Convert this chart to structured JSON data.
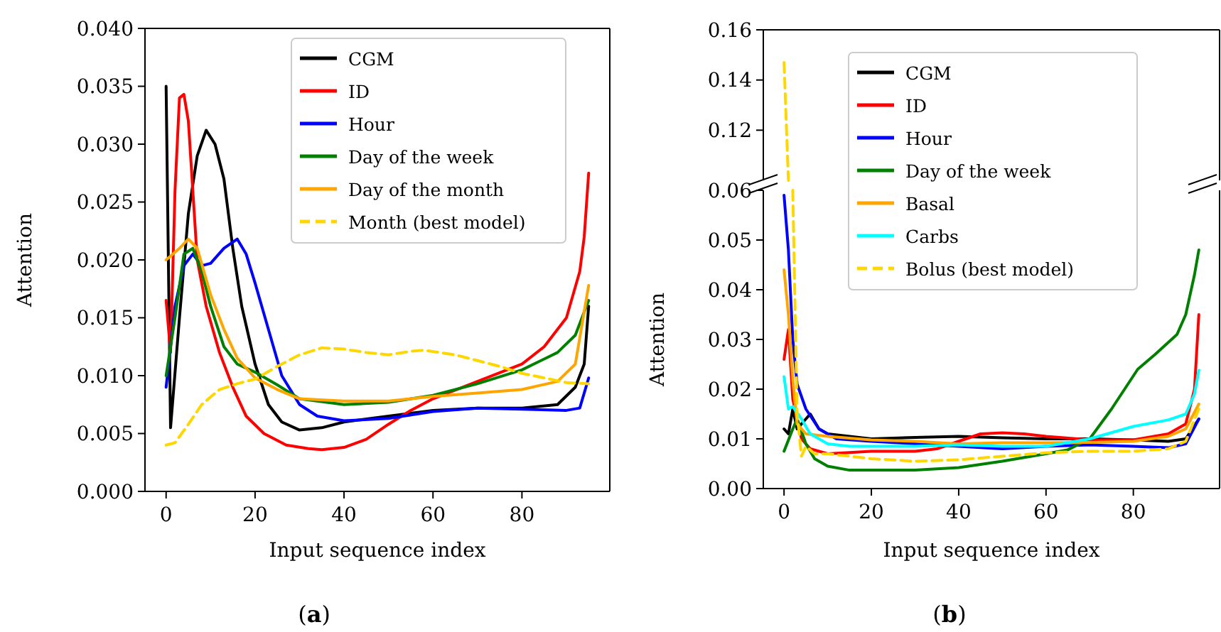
{
  "chart_data": [
    {
      "type": "line",
      "title": "(a)",
      "xlabel": "Input sequence index",
      "ylabel": "Attention",
      "xlim": [
        -4.75,
        99.75
      ],
      "xticks": [
        0,
        20,
        40,
        60,
        80
      ],
      "ylim": [
        0,
        0.04
      ],
      "yticks": [
        {
          "value": 0,
          "label": "0.000"
        },
        {
          "value": 0.005,
          "label": "0.005"
        },
        {
          "value": 0.01,
          "label": "0.010"
        },
        {
          "value": 0.015,
          "label": "0.015"
        },
        {
          "value": 0.02,
          "label": "0.020"
        },
        {
          "value": 0.025,
          "label": "0.025"
        },
        {
          "value": 0.03,
          "label": "0.030"
        },
        {
          "value": 0.035,
          "label": "0.035"
        },
        {
          "value": 0.04,
          "label": "0.040"
        }
      ],
      "legend": "top right",
      "series": [
        {
          "name": "CGM",
          "color": "#000000",
          "x": [
            0,
            1,
            3,
            5,
            7,
            9,
            11,
            13,
            15,
            17,
            20,
            23,
            26,
            30,
            35,
            40,
            50,
            60,
            70,
            80,
            88,
            92,
            94,
            95
          ],
          "values": [
            0.035,
            0.0055,
            0.015,
            0.024,
            0.029,
            0.0312,
            0.03,
            0.027,
            0.021,
            0.016,
            0.011,
            0.0075,
            0.006,
            0.0053,
            0.0055,
            0.006,
            0.0065,
            0.007,
            0.0072,
            0.0072,
            0.0075,
            0.009,
            0.011,
            0.016
          ]
        },
        {
          "name": "ID",
          "color": "#ff0000",
          "x": [
            0,
            1,
            2,
            3,
            4,
            5,
            6,
            7,
            9,
            12,
            15,
            18,
            22,
            27,
            32,
            35,
            40,
            45,
            50,
            55,
            60,
            70,
            80,
            85,
            90,
            93,
            94,
            95
          ],
          "values": [
            0.0165,
            0.012,
            0.026,
            0.034,
            0.0343,
            0.032,
            0.026,
            0.02,
            0.016,
            0.012,
            0.009,
            0.0065,
            0.005,
            0.004,
            0.0037,
            0.0036,
            0.0038,
            0.0045,
            0.0058,
            0.007,
            0.008,
            0.0095,
            0.011,
            0.0125,
            0.015,
            0.019,
            0.022,
            0.0275
          ]
        },
        {
          "name": "Hour",
          "color": "#0000ff",
          "x": [
            0,
            2,
            4,
            6,
            8,
            10,
            13,
            16,
            18,
            20,
            23,
            26,
            30,
            34,
            40,
            50,
            60,
            70,
            80,
            90,
            93,
            95
          ],
          "values": [
            0.009,
            0.016,
            0.0195,
            0.0205,
            0.0195,
            0.0197,
            0.021,
            0.0218,
            0.0205,
            0.018,
            0.014,
            0.01,
            0.0075,
            0.0065,
            0.0061,
            0.0063,
            0.0069,
            0.0072,
            0.0071,
            0.007,
            0.0072,
            0.0098
          ]
        },
        {
          "name": "Day of the week",
          "color": "#008000",
          "x": [
            0,
            2,
            4,
            6,
            8,
            10,
            13,
            16,
            20,
            25,
            30,
            40,
            50,
            60,
            70,
            80,
            88,
            92,
            95
          ],
          "values": [
            0.01,
            0.015,
            0.0205,
            0.021,
            0.019,
            0.016,
            0.0125,
            0.011,
            0.0103,
            0.0092,
            0.008,
            0.0075,
            0.0077,
            0.0083,
            0.0093,
            0.0105,
            0.012,
            0.0135,
            0.0165
          ]
        },
        {
          "name": "Day of the month",
          "color": "#ffa500",
          "x": [
            0,
            3,
            5,
            7,
            10,
            13,
            16,
            20,
            25,
            30,
            40,
            50,
            60,
            70,
            80,
            88,
            92,
            95
          ],
          "values": [
            0.02,
            0.021,
            0.0218,
            0.021,
            0.017,
            0.014,
            0.0115,
            0.0098,
            0.0088,
            0.008,
            0.0078,
            0.0078,
            0.0082,
            0.0085,
            0.0088,
            0.0095,
            0.011,
            0.0178
          ]
        },
        {
          "name": "Month (best model)",
          "color": "#ffd700",
          "line_style": "dashed",
          "x": [
            0,
            2,
            5,
            8,
            12,
            16,
            20,
            25,
            30,
            35,
            40,
            45,
            50,
            55,
            58,
            65,
            70,
            75,
            80,
            85,
            90,
            95
          ],
          "values": [
            0.004,
            0.0042,
            0.0058,
            0.0075,
            0.0088,
            0.0093,
            0.0097,
            0.0108,
            0.0118,
            0.0124,
            0.0123,
            0.012,
            0.0118,
            0.0121,
            0.0122,
            0.0118,
            0.0113,
            0.0108,
            0.0102,
            0.0098,
            0.0094,
            0.0093
          ]
        }
      ]
    },
    {
      "type": "line",
      "tick_labels": "y",
      "xlim": [
        -4.75,
        99.75
      ],
      "ylim": [
        0.1,
        0.16
      ],
      "yticks": [
        0.12,
        0.14,
        0.16
      ],
      "series": [
        {
          "color": "#ffd700",
          "line_style": "dashed",
          "x": [
            0,
            1
          ],
          "values": [
            0.147,
            0.1
          ]
        }
      ]
    },
    {
      "type": "line",
      "title": "(b)",
      "xlabel": "Input sequence index",
      "ylabel": "Attention",
      "xlim": [
        -4.75,
        99.75
      ],
      "xticks": [
        0,
        20,
        40,
        60,
        80
      ],
      "ylim": [
        0,
        0.06
      ],
      "yticks": [
        {
          "value": 0,
          "label": "0.00"
        },
        {
          "value": 0.01,
          "label": "0.01"
        },
        {
          "value": 0.02,
          "label": "0.02"
        },
        {
          "value": 0.03,
          "label": "0.03"
        },
        {
          "value": 0.04,
          "label": "0.04"
        },
        {
          "value": 0.05,
          "label": "0.05"
        },
        {
          "value": 0.06,
          "label": "0.06"
        }
      ],
      "legend": "top",
      "series": [
        {
          "name": "CGM",
          "color": "#000000",
          "x": [
            0,
            1,
            2,
            3,
            5,
            6,
            8,
            10,
            20,
            30,
            40,
            50,
            60,
            70,
            80,
            88,
            92,
            95
          ],
          "values": [
            0.012,
            0.011,
            0.016,
            0.012,
            0.014,
            0.015,
            0.012,
            0.011,
            0.01,
            0.0103,
            0.0105,
            0.0102,
            0.01,
            0.01,
            0.0098,
            0.0095,
            0.01,
            0.014
          ]
        },
        {
          "name": "ID",
          "color": "#ff0000",
          "x": [
            0,
            1,
            2,
            4,
            6,
            10,
            20,
            30,
            35,
            40,
            45,
            50,
            55,
            60,
            70,
            80,
            88,
            92,
            94,
            95
          ],
          "values": [
            0.026,
            0.032,
            0.018,
            0.01,
            0.008,
            0.007,
            0.0075,
            0.0075,
            0.008,
            0.0095,
            0.011,
            0.0112,
            0.011,
            0.0105,
            0.0098,
            0.0098,
            0.011,
            0.013,
            0.02,
            0.035
          ]
        },
        {
          "name": "Hour",
          "color": "#0000ff",
          "x": [
            0,
            1,
            2,
            3,
            5,
            8,
            12,
            20,
            30,
            40,
            50,
            60,
            70,
            80,
            88,
            92,
            95
          ],
          "values": [
            0.059,
            0.048,
            0.03,
            0.021,
            0.016,
            0.012,
            0.01,
            0.0095,
            0.009,
            0.0085,
            0.008,
            0.0085,
            0.0088,
            0.0085,
            0.0082,
            0.009,
            0.014
          ]
        },
        {
          "name": "Day of the week",
          "color": "#008000",
          "x": [
            0,
            2,
            3,
            5,
            7,
            10,
            15,
            30,
            40,
            50,
            60,
            65,
            70,
            75,
            78,
            81,
            85,
            90,
            92,
            94,
            95
          ],
          "values": [
            0.0075,
            0.012,
            0.014,
            0.009,
            0.006,
            0.0045,
            0.0037,
            0.0037,
            0.0042,
            0.0055,
            0.007,
            0.0078,
            0.01,
            0.016,
            0.02,
            0.024,
            0.027,
            0.031,
            0.035,
            0.043,
            0.048
          ]
        },
        {
          "name": "Basal",
          "color": "#ffa500",
          "x": [
            0,
            1,
            2,
            3,
            5,
            10,
            20,
            30,
            40,
            50,
            60,
            70,
            80,
            88,
            92,
            95
          ],
          "values": [
            0.044,
            0.035,
            0.022,
            0.013,
            0.011,
            0.0105,
            0.0098,
            0.0095,
            0.009,
            0.0092,
            0.0092,
            0.0093,
            0.0095,
            0.0105,
            0.012,
            0.017
          ]
        },
        {
          "name": "Carbs",
          "color": "#00ffff",
          "x": [
            0,
            1,
            2,
            4,
            6,
            10,
            15,
            30,
            40,
            50,
            60,
            70,
            80,
            88,
            92,
            94,
            95
          ],
          "values": [
            0.0225,
            0.016,
            0.0165,
            0.014,
            0.011,
            0.009,
            0.0085,
            0.0085,
            0.0088,
            0.0085,
            0.0085,
            0.01,
            0.0125,
            0.0138,
            0.015,
            0.019,
            0.0238
          ]
        },
        {
          "name": "Bolus (best model)",
          "color": "#ffd700",
          "line_style": "dashed",
          "x": [
            2,
            3,
            4,
            5,
            7,
            10,
            15,
            20,
            30,
            40,
            50,
            60,
            70,
            80,
            88,
            92,
            95
          ],
          "values": [
            0.06,
            0.015,
            0.0065,
            0.0085,
            0.007,
            0.007,
            0.0065,
            0.006,
            0.0055,
            0.0058,
            0.0065,
            0.0072,
            0.0075,
            0.0075,
            0.008,
            0.0095,
            0.016
          ]
        }
      ]
    }
  ]
}
